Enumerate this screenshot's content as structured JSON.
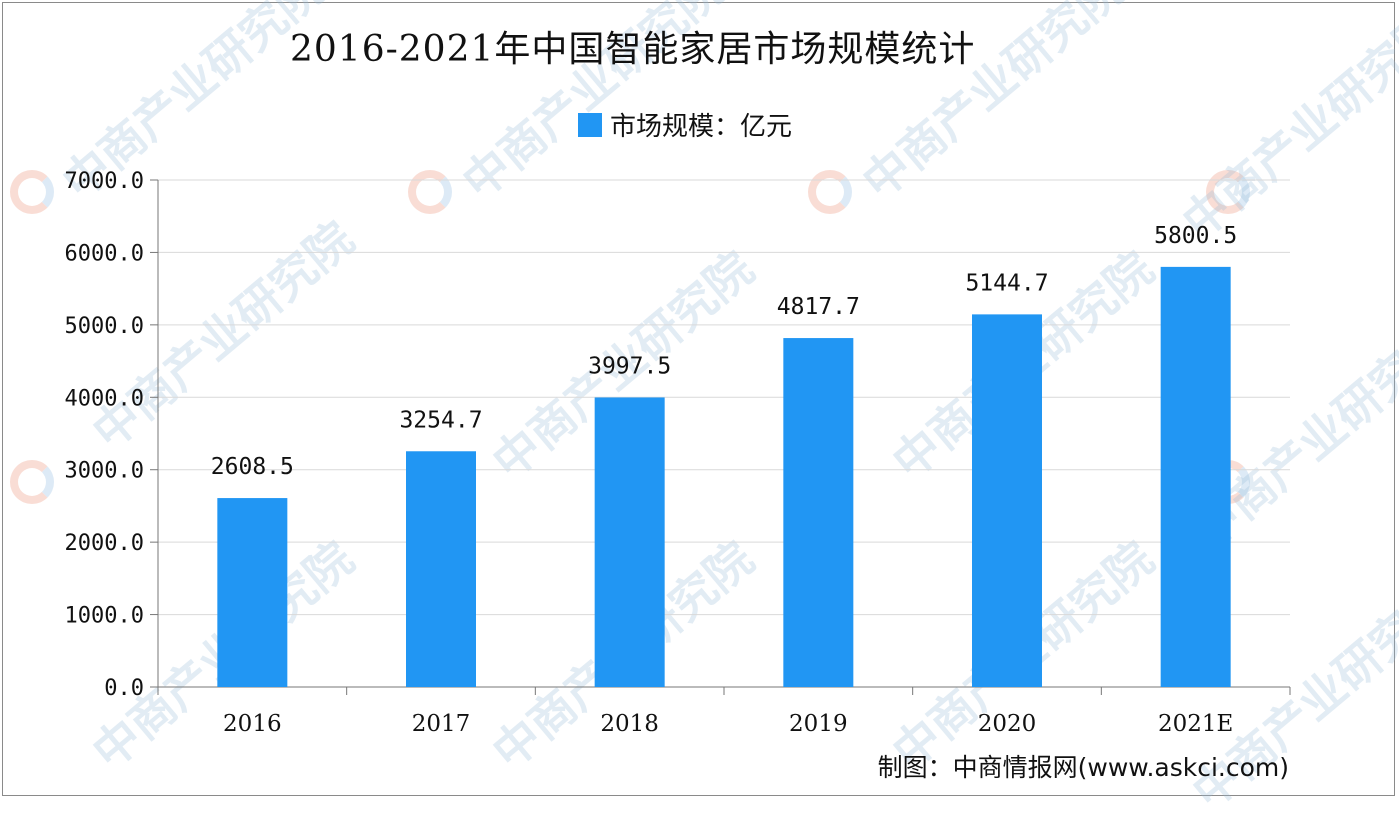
{
  "chart_data": {
    "type": "bar",
    "title": "2016-2021年中国智能家居市场规模统计",
    "legend": {
      "label": "市场规模：亿元",
      "placement": "top-center"
    },
    "categories": [
      "2016",
      "2017",
      "2018",
      "2019",
      "2020",
      "2021E"
    ],
    "series": [
      {
        "name": "市场规模：亿元",
        "values": [
          2608.5,
          3254.7,
          3997.5,
          4817.7,
          5144.7,
          5800.5
        ]
      }
    ],
    "data_labels": [
      "2608.5",
      "3254.7",
      "3997.5",
      "4817.7",
      "5144.7",
      "5800.5"
    ],
    "yticks": [
      "0.0",
      "1000.0",
      "2000.0",
      "3000.0",
      "4000.0",
      "5000.0",
      "6000.0",
      "7000.0"
    ],
    "ylim": [
      0,
      7000
    ],
    "grid": true,
    "xlabel": "",
    "ylabel": "",
    "bar_color": "#2196f3"
  },
  "footer": {
    "credit": "制图：中商情报网(www.askci.com)"
  },
  "watermark": {
    "text": "中商产业研究院"
  }
}
